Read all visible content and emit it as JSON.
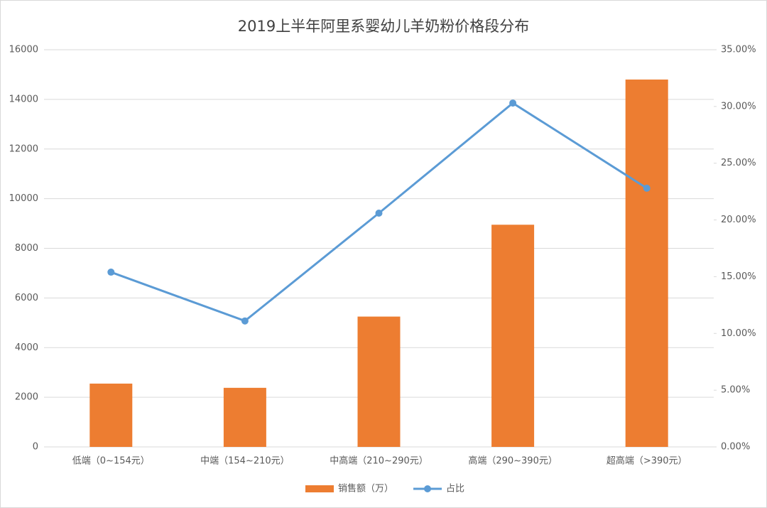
{
  "chart_data": {
    "type": "bar",
    "title": "2019上半年阿里系婴幼儿羊奶粉价格段分布",
    "categories": [
      "低端（0~154元）",
      "中端（154~210元）",
      "中高端（210~290元）",
      "高端（290~390元）",
      "超高端（>390元）"
    ],
    "series": [
      {
        "name": "销售额（万）",
        "type": "bar",
        "color": "#ed7d31",
        "values": [
          2550,
          2380,
          5250,
          8950,
          14800
        ]
      },
      {
        "name": "占比",
        "type": "line",
        "axis": "y2",
        "color": "#5b9bd5",
        "values": [
          15.4,
          11.1,
          20.6,
          30.3,
          22.8
        ]
      }
    ],
    "ylim": [
      0,
      16000
    ],
    "yticks": [
      0,
      2000,
      4000,
      6000,
      8000,
      10000,
      12000,
      14000,
      16000
    ],
    "y2lim": [
      0,
      35
    ],
    "y2ticks": [
      {
        "value": 0,
        "label": "0.00%"
      },
      {
        "value": 5,
        "label": "5.00%"
      },
      {
        "value": 10,
        "label": "10.00%"
      },
      {
        "value": 15,
        "label": "15.00%"
      },
      {
        "value": 20,
        "label": "20.00%"
      },
      {
        "value": 25,
        "label": "25.00%"
      },
      {
        "value": 30,
        "label": "30.00%"
      },
      {
        "value": 35,
        "label": "35.00%"
      }
    ],
    "grid": true,
    "legend": "bottom"
  }
}
